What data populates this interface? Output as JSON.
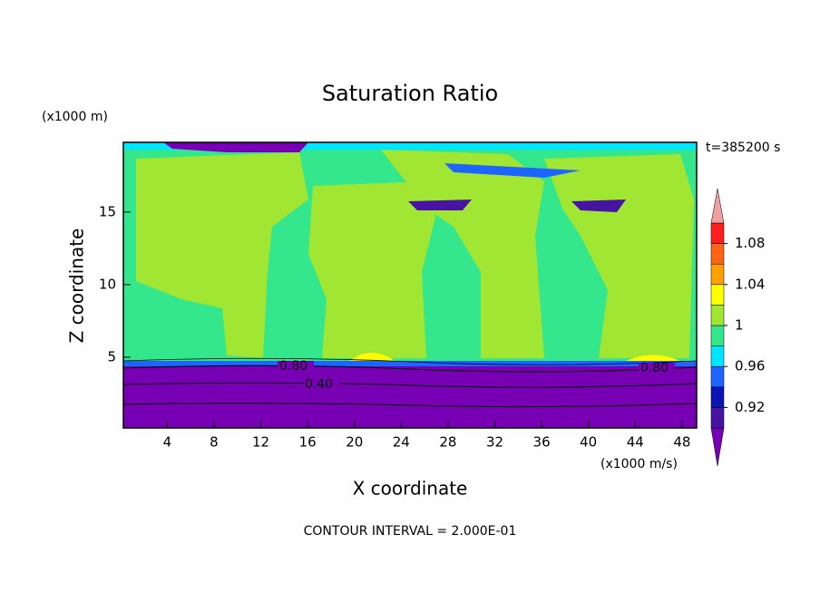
{
  "chart_data": {
    "type": "contour",
    "title": "Saturation Ratio",
    "x_label": "X coordinate",
    "y_label": "Z coordinate",
    "x_unit": "(x1000 m/s)",
    "y_unit": "(x1000 m)",
    "time_label": "t=385200 s",
    "footer": "CONTOUR INTERVAL = 2.000E-01",
    "contour_labels": [
      "0.80",
      "0.40",
      "0.80"
    ],
    "xlim": [
      0.25,
      49.25
    ],
    "xticks": [
      4,
      8,
      12,
      16,
      20,
      24,
      28,
      32,
      36,
      40,
      44,
      48
    ],
    "ylim": [
      0.125,
      19.8
    ],
    "yticks": [
      5,
      10,
      15
    ],
    "colorbar": {
      "lim": [
        0.9,
        1.1
      ],
      "ticks": [
        0.92,
        0.96,
        1,
        1.04,
        1.08
      ],
      "colors": [
        "#4614a0",
        "#0a14b4",
        "#1e64ff",
        "#00e6ff",
        "#34e68c",
        "#a0e632",
        "#ffff00",
        "#ffa000",
        "#ff6414",
        "#ff1e1e"
      ],
      "under_color": "#7800b4",
      "over_color": "#f0a0a0"
    }
  }
}
